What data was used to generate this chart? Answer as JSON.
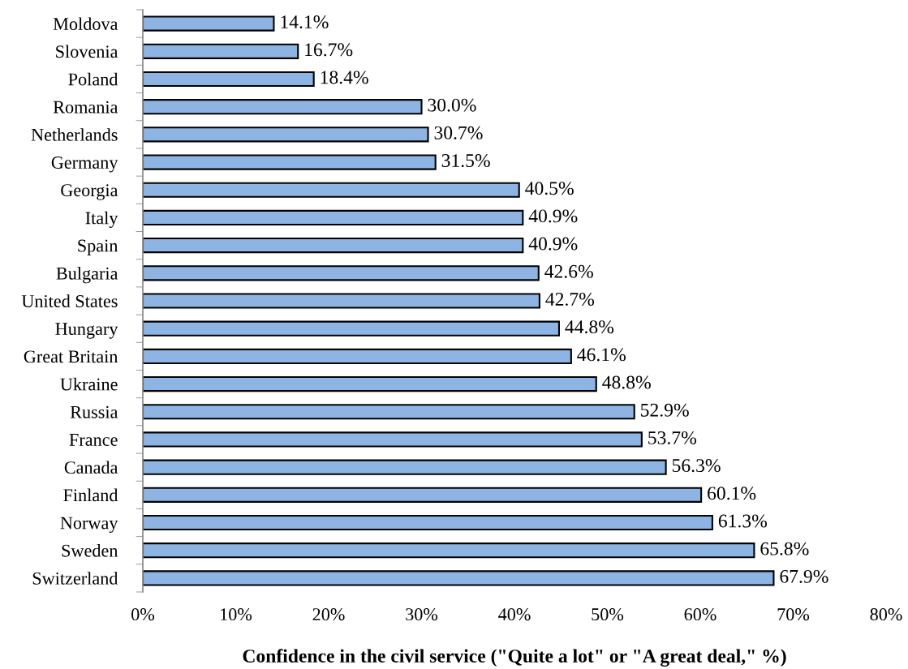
{
  "chart_data": {
    "type": "bar",
    "orientation": "horizontal",
    "xlabel": "Confidence in the civil service (\"Quite a lot\" or \"A great deal,\" %)",
    "categories": [
      "Moldova",
      "Slovenia",
      "Poland",
      "Romania",
      "Netherlands",
      "Germany",
      "Georgia",
      "Italy",
      "Spain",
      "Bulgaria",
      "United States",
      "Hungary",
      "Great Britain",
      "Ukraine",
      "Russia",
      "France",
      "Canada",
      "Finland",
      "Norway",
      "Sweden",
      "Switzerland"
    ],
    "values": [
      14.1,
      16.7,
      18.4,
      30.0,
      30.7,
      31.5,
      40.5,
      40.9,
      40.9,
      42.6,
      42.7,
      44.8,
      46.1,
      48.8,
      52.9,
      53.7,
      56.3,
      60.1,
      61.3,
      65.8,
      67.9
    ],
    "value_labels": [
      "14.1%",
      "16.7%",
      "18.4%",
      "30.0%",
      "30.7%",
      "31.5%",
      "40.5%",
      "40.9%",
      "40.9%",
      "42.6%",
      "42.7%",
      "44.8%",
      "46.1%",
      "48.8%",
      "52.9%",
      "53.7%",
      "56.3%",
      "60.1%",
      "61.3%",
      "65.8%",
      "67.9%"
    ],
    "color": "#8db4e2",
    "xlim": [
      0,
      80
    ],
    "xticks": [
      {
        "value": 0,
        "label": "0%"
      },
      {
        "value": 10,
        "label": "10%"
      },
      {
        "value": 20,
        "label": "20%"
      },
      {
        "value": 30,
        "label": "30%"
      },
      {
        "value": 40,
        "label": "40%"
      },
      {
        "value": 50,
        "label": "50%"
      },
      {
        "value": 60,
        "label": "60%"
      },
      {
        "value": 70,
        "label": "70%"
      },
      {
        "value": 80,
        "label": "80%"
      }
    ],
    "grid": false,
    "legend": false
  }
}
